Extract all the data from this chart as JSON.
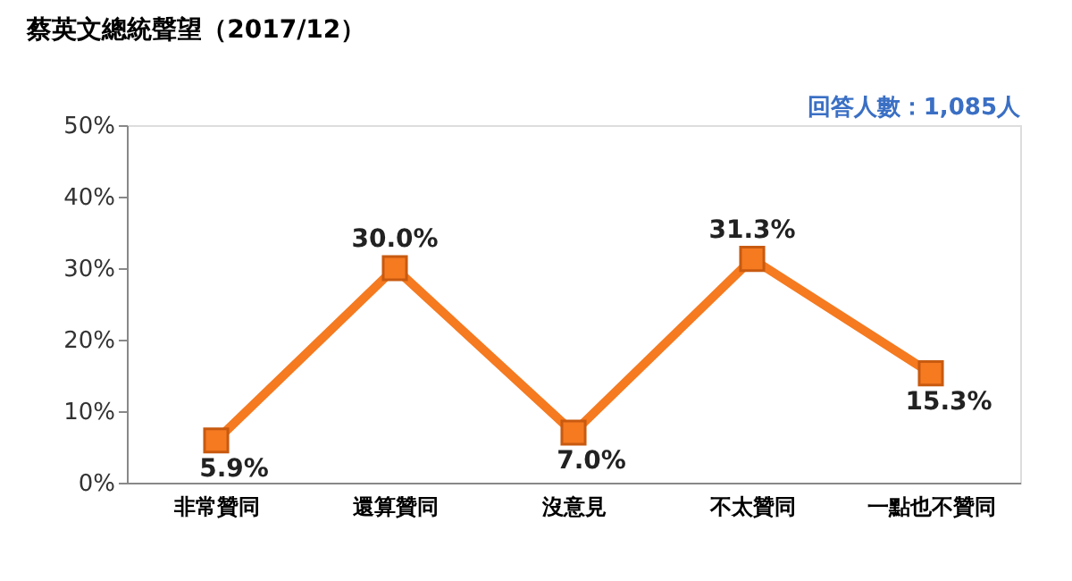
{
  "chart_data": {
    "type": "line",
    "title": "蔡英文總統聲望（2017/12）",
    "categories": [
      "非常贊同",
      "還算贊同",
      "沒意見",
      "不太贊同",
      "一點也不贊同"
    ],
    "series": [
      {
        "color": "#f57a20",
        "values": [
          5.9,
          30.0,
          7.0,
          31.3,
          15.3
        ]
      }
    ],
    "value_labels": [
      "5.9%",
      "30.0%",
      "7.0%",
      "31.3%",
      "15.3%"
    ],
    "ylim": [
      0,
      50
    ],
    "yticks": [
      {
        "value": 0,
        "label": "0%"
      },
      {
        "value": 10,
        "label": "10%"
      },
      {
        "value": 20,
        "label": "20%"
      },
      {
        "value": 30,
        "label": "30%"
      },
      {
        "value": 40,
        "label": "40%"
      },
      {
        "value": 50,
        "label": "50%"
      }
    ],
    "annotations": [
      "回答人數：1,085人"
    ],
    "marker": "square",
    "line_style": "solid",
    "grid": false
  }
}
